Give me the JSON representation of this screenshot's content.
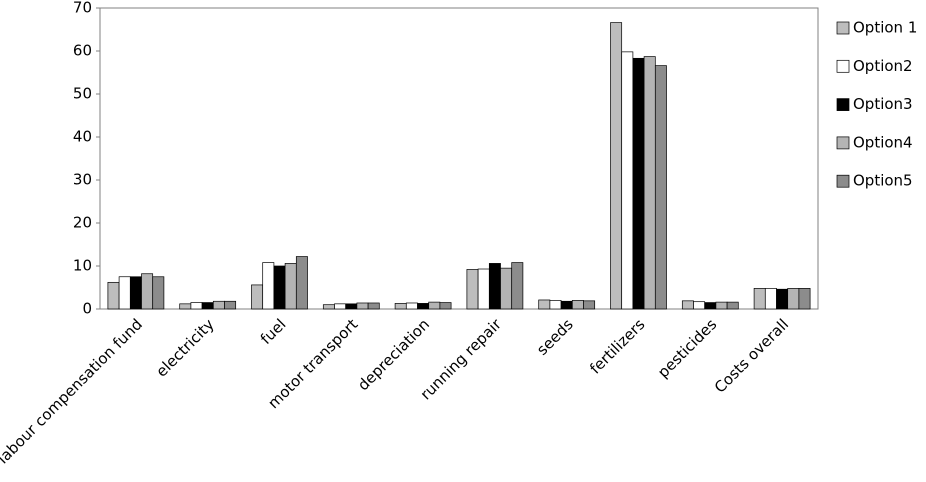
{
  "chart_data": {
    "type": "bar",
    "categories": [
      "labour compensation fund",
      "electricity",
      "fuel",
      "motor transport",
      "depreciation",
      "running repair",
      "seeds",
      "fertilizers",
      "pesticides",
      "Costs overall"
    ],
    "series": [
      {
        "name": "Option 1",
        "color": "#bdbdbd",
        "values": [
          6.2,
          1.2,
          5.6,
          1.0,
          1.3,
          9.2,
          2.1,
          66.6,
          1.9,
          4.8
        ]
      },
      {
        "name": "Option2",
        "color": "#ffffff",
        "values": [
          7.5,
          1.5,
          10.8,
          1.2,
          1.4,
          9.3,
          2.0,
          59.8,
          1.7,
          4.8
        ]
      },
      {
        "name": "Option3",
        "color": "#000000",
        "values": [
          7.5,
          1.5,
          10.0,
          1.2,
          1.3,
          10.6,
          1.8,
          58.3,
          1.5,
          4.6
        ]
      },
      {
        "name": "Option4",
        "color": "#b4b4b4",
        "values": [
          8.2,
          1.8,
          10.6,
          1.4,
          1.6,
          9.5,
          2.0,
          58.7,
          1.6,
          4.8
        ]
      },
      {
        "name": "Option5",
        "color": "#8c8c8c",
        "values": [
          7.5,
          1.8,
          12.2,
          1.4,
          1.5,
          10.8,
          1.9,
          56.6,
          1.6,
          4.8
        ]
      }
    ],
    "ylim": [
      0,
      70
    ],
    "yticks": [
      0,
      10,
      20,
      30,
      40,
      50,
      60,
      70
    ],
    "grid": false,
    "legend": "right"
  }
}
